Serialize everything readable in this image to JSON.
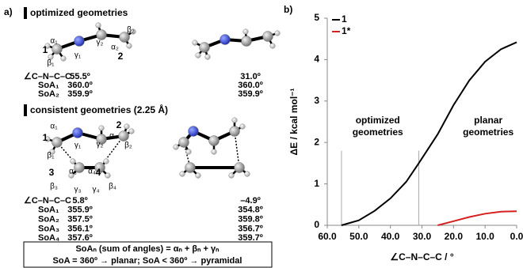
{
  "panel_a": {
    "label": "a)",
    "optimized": {
      "heading": "optimized geometries",
      "atom_labels": [
        "α₁",
        "1",
        "β₁",
        "γ₁",
        "γ₂",
        "β₂",
        "α₂",
        "2"
      ],
      "rows": [
        [
          "∠C–N–C–C",
          "55.5º",
          "31.0º"
        ],
        [
          "SoA₁",
          "360.0º",
          "360.0º"
        ],
        [
          "SoA₂",
          "359.9º",
          "359.9º"
        ]
      ]
    },
    "consistent": {
      "heading": "consistent geometries (2.25 Å)",
      "atom_labels": [
        "α₁",
        "1",
        "β₁",
        "γ₁",
        "γ₂",
        "2",
        "α₂",
        "β₂",
        "3",
        "α₃",
        "α₄",
        "4",
        "β₃",
        "γ₃",
        "γ₄",
        "β₄"
      ],
      "rows": [
        [
          "∠C–N–C–C",
          "5.8º",
          "–4.9º"
        ],
        [
          "SoA₁",
          "355.9º",
          "354.8º"
        ],
        [
          "SoA₂",
          "357.5º",
          "359.8º"
        ],
        [
          "SoA₃",
          "356.1º",
          "356.7º"
        ],
        [
          "SoA₄",
          "357.6º",
          "359.7º"
        ]
      ]
    },
    "note": [
      "SoAₙ (sum of angles) = αₙ + βₙ + γₙ",
      "SoA = 360º → planar; SoA < 360º → pyramidal"
    ]
  },
  "chart_data": {
    "type": "line",
    "label": "b)",
    "x_label": "∠C–N–C–C / °",
    "y_label": "ΔE / kcal mol⁻¹",
    "x": [
      55.5,
      50,
      45,
      40,
      35,
      31,
      25,
      20,
      15,
      10,
      5,
      0
    ],
    "series": [
      {
        "name": "1",
        "color": "#000000",
        "values": [
          0,
          0.12,
          0.35,
          0.65,
          1.05,
          1.5,
          2.2,
          2.9,
          3.5,
          3.95,
          4.25,
          4.42
        ]
      },
      {
        "name": "1*",
        "color": "#d42020",
        "values": [
          null,
          null,
          null,
          null,
          null,
          null,
          0,
          0.1,
          0.2,
          0.28,
          0.33,
          0.34
        ]
      }
    ],
    "xlim": [
      60,
      0
    ],
    "xticks": [
      {
        "value": 60,
        "label": "60.0"
      },
      {
        "value": 50,
        "label": "50.0"
      },
      {
        "value": 40,
        "label": "40.0"
      },
      {
        "value": 30,
        "label": "30.0"
      },
      {
        "value": 20,
        "label": "20.0"
      },
      {
        "value": 10,
        "label": "10.0"
      },
      {
        "value": 0,
        "label": "0.0"
      }
    ],
    "ylim": [
      0,
      5
    ],
    "yticks": [
      0,
      1,
      2,
      3,
      4,
      5
    ],
    "reference_lines": [
      55.5,
      31.0
    ],
    "annotations": [
      [
        "optimized",
        "geometries"
      ],
      [
        "planar",
        "geometries"
      ]
    ],
    "legend": "upper left"
  }
}
